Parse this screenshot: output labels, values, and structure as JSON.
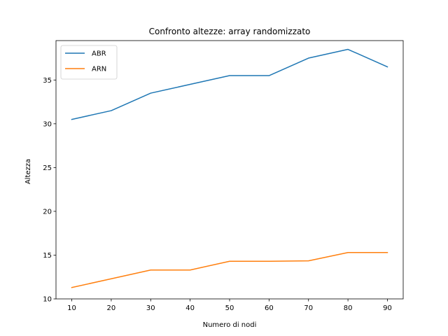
{
  "chart_data": {
    "type": "line",
    "title": "Confronto altezze: array randomizzato",
    "xlabel": "Numero di nodi",
    "ylabel": "Altezza",
    "x": [
      10,
      20,
      30,
      40,
      50,
      60,
      70,
      80,
      90
    ],
    "xlim": [
      6,
      94
    ],
    "ylim": [
      10,
      39.5
    ],
    "xticks": [
      10,
      20,
      30,
      40,
      50,
      60,
      70,
      80,
      90
    ],
    "yticks": [
      10,
      15,
      20,
      25,
      30,
      35
    ],
    "grid": false,
    "legend": "top-left",
    "series": [
      {
        "name": "ABR",
        "color": "#1f77b4",
        "values": [
          30.5,
          31.5,
          33.5,
          34.5,
          35.5,
          35.5,
          37.5,
          38.5,
          36.5
        ]
      },
      {
        "name": "ARN",
        "color": "#ff7f0e",
        "values": [
          11.3,
          12.3,
          13.3,
          13.3,
          14.3,
          14.3,
          14.35,
          15.3,
          15.3
        ]
      }
    ]
  }
}
